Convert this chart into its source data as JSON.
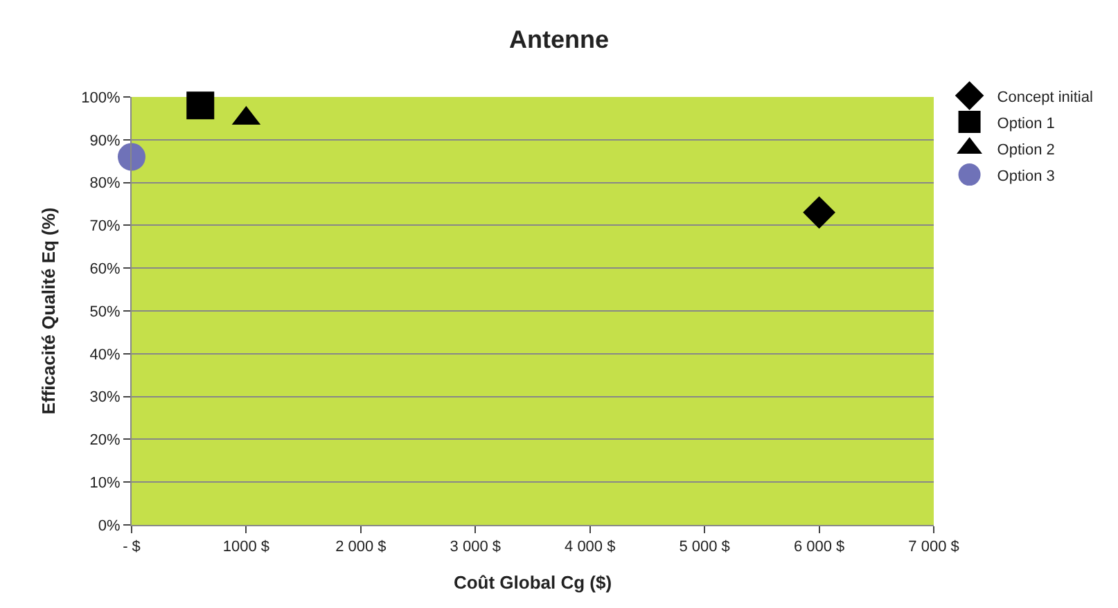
{
  "chart_data": {
    "type": "scatter",
    "title": "Antenne",
    "xlabel": "Coût Global Cg ($)",
    "ylabel": "Efficacité Qualité Eq (%)",
    "series": [
      {
        "name": "Concept initial",
        "color": "#000000",
        "marker": "diamond",
        "x": [
          6000
        ],
        "values": [
          73
        ]
      },
      {
        "name": "Option 1",
        "color": "#000000",
        "marker": "square",
        "x": [
          600
        ],
        "values": [
          98
        ]
      },
      {
        "name": "Option 2",
        "color": "#000000",
        "marker": "triangle",
        "x": [
          1000
        ],
        "values": [
          95
        ]
      },
      {
        "name": "Option 3",
        "color": "#6f72b8",
        "marker": "circle",
        "x": [
          0
        ],
        "values": [
          86
        ]
      }
    ],
    "xlim": [
      0,
      7000
    ],
    "ylim": [
      0,
      100
    ],
    "xticks": [
      {
        "value": 0,
        "label": "- $"
      },
      {
        "value": 1000,
        "label": "1000 $"
      },
      {
        "value": 2000,
        "label": "2 000 $"
      },
      {
        "value": 3000,
        "label": "3 000 $"
      },
      {
        "value": 4000,
        "label": "4 000 $"
      },
      {
        "value": 5000,
        "label": "5 000 $"
      },
      {
        "value": 6000,
        "label": "6 000 $"
      },
      {
        "value": 7000,
        "label": "7 000 $"
      }
    ],
    "yticks": [
      {
        "value": 0,
        "label": "0%"
      },
      {
        "value": 10,
        "label": "10%"
      },
      {
        "value": 20,
        "label": "20%"
      },
      {
        "value": 30,
        "label": "30%"
      },
      {
        "value": 40,
        "label": "40%"
      },
      {
        "value": 50,
        "label": "50%"
      },
      {
        "value": 60,
        "label": "60%"
      },
      {
        "value": 70,
        "label": "70%"
      },
      {
        "value": 80,
        "label": "80%"
      },
      {
        "value": 90,
        "label": "90%"
      },
      {
        "value": 100,
        "label": "100%"
      }
    ],
    "grid": "y",
    "legend": "top right"
  }
}
